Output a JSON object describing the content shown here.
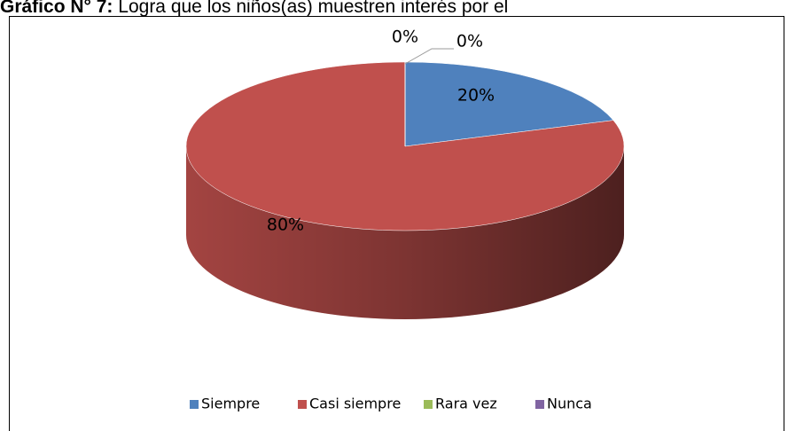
{
  "chart_data": {
    "type": "pie",
    "title_prefix": "Gráfico N° 7:",
    "title": "Logra que los niños(as) muestren interés por el",
    "categories": [
      "Siempre",
      "Casi siempre",
      "Rara vez",
      "Nunca"
    ],
    "values": [
      20,
      80,
      0,
      0
    ],
    "value_labels": [
      "20%",
      "80%",
      "0%",
      "0%"
    ],
    "colors": [
      "#4f81bd",
      "#c0504d",
      "#9bbb59",
      "#8064a2"
    ],
    "legend": "bottom"
  }
}
